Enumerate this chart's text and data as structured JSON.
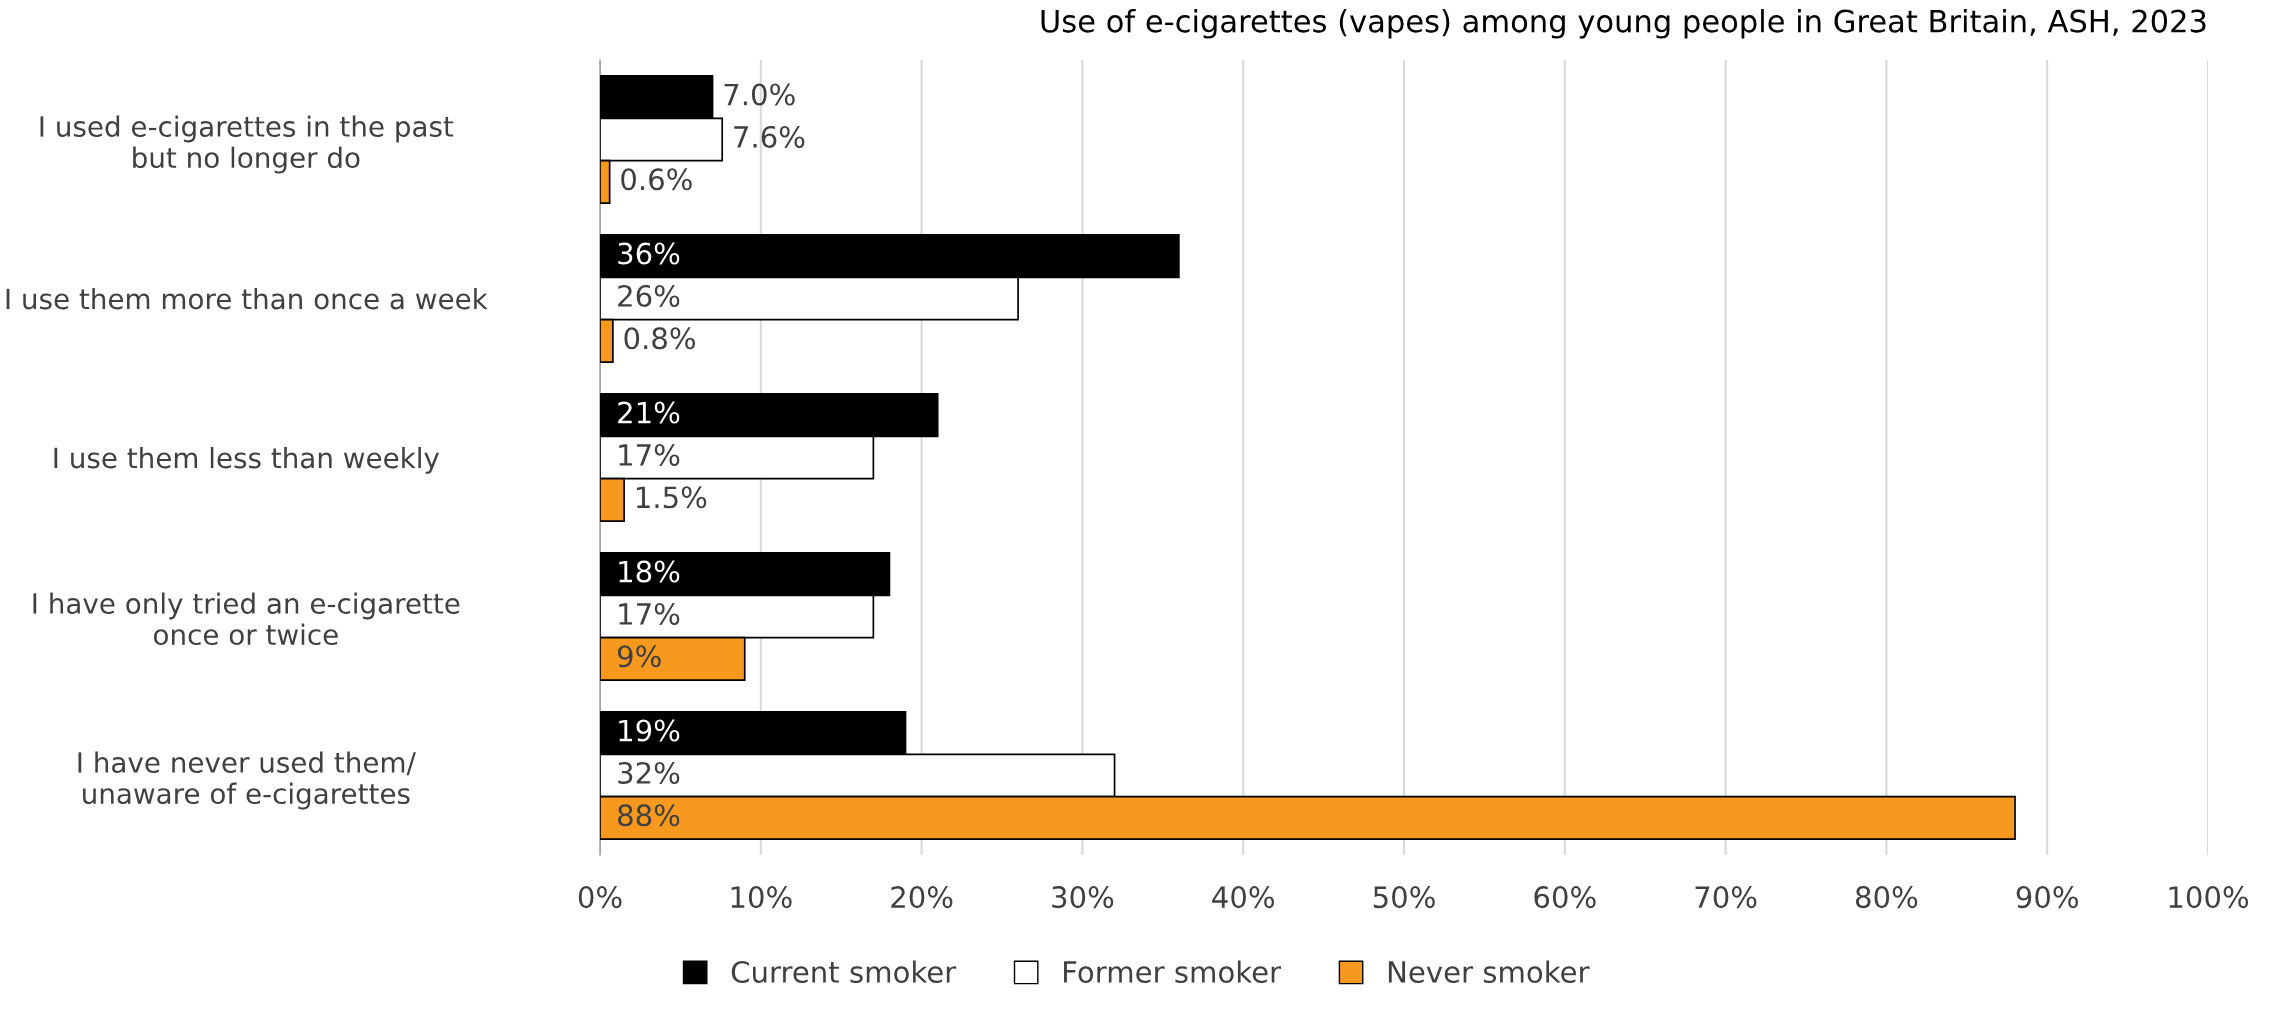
{
  "chart_data": {
    "type": "bar",
    "orientation": "horizontal",
    "title": "Use of e-cigarettes (vapes) among young people in Great Britain, ASH, 2023",
    "categories": [
      "I used e-cigarettes in the past\nbut no longer do",
      "I use them more than once a week",
      "I use them less than weekly",
      "I have only tried an e-cigarette\nonce or twice",
      "I have never used them/\nunaware of e-cigarettes"
    ],
    "series": [
      {
        "name": "Current smoker",
        "color": "#000000",
        "values": [
          7.0,
          36,
          21,
          18,
          19
        ],
        "value_labels": [
          "7.0%",
          "36%",
          "21%",
          "18%",
          "19%"
        ]
      },
      {
        "name": "Former smoker",
        "color": "#ffffff",
        "values": [
          7.6,
          26,
          17,
          17,
          32
        ],
        "value_labels": [
          "7.6%",
          "26%",
          "17%",
          "17%",
          "32%"
        ]
      },
      {
        "name": "Never smoker",
        "color": "#f7991f",
        "values": [
          0.6,
          0.8,
          1.5,
          9,
          88
        ],
        "value_labels": [
          "0.6%",
          "0.8%",
          "1.5%",
          "9%",
          "88%"
        ]
      }
    ],
    "xlim": [
      0,
      100
    ],
    "xticks": [
      {
        "value": 0,
        "label": "0%"
      },
      {
        "value": 10,
        "label": "10%"
      },
      {
        "value": 20,
        "label": "20%"
      },
      {
        "value": 30,
        "label": "30%"
      },
      {
        "value": 40,
        "label": "40%"
      },
      {
        "value": 50,
        "label": "50%"
      },
      {
        "value": 60,
        "label": "60%"
      },
      {
        "value": 70,
        "label": "70%"
      },
      {
        "value": 80,
        "label": "80%"
      },
      {
        "value": 90,
        "label": "90%"
      },
      {
        "value": 100,
        "label": "100%"
      }
    ],
    "grid": "x",
    "legend": "bottom"
  }
}
